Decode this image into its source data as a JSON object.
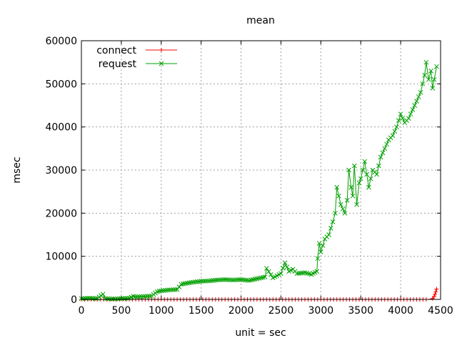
{
  "chart_data": {
    "type": "line",
    "title": "mean",
    "xlabel": "unit = sec",
    "ylabel": "msec",
    "xlim": [
      0,
      4500
    ],
    "ylim": [
      0,
      60000
    ],
    "xticks": [
      0,
      500,
      1000,
      1500,
      2000,
      2500,
      3000,
      3500,
      4000,
      4500
    ],
    "yticks": [
      0,
      10000,
      20000,
      30000,
      40000,
      50000,
      60000
    ],
    "grid": true,
    "legend_position": "top-left",
    "series": [
      {
        "name": "connect",
        "color": "#ff0000",
        "marker": "plus",
        "points": [
          [
            0,
            0
          ],
          [
            4350,
            0
          ],
          [
            4400,
            200
          ],
          [
            4420,
            700
          ],
          [
            4430,
            1200
          ],
          [
            4440,
            1800
          ],
          [
            4450,
            2400
          ]
        ]
      },
      {
        "name": "request",
        "color": "#00a000",
        "marker": "x",
        "points": [
          [
            0,
            200
          ],
          [
            100,
            300
          ],
          [
            200,
            200
          ],
          [
            270,
            1200
          ],
          [
            300,
            200
          ],
          [
            400,
            100
          ],
          [
            500,
            200
          ],
          [
            600,
            300
          ],
          [
            650,
            700
          ],
          [
            700,
            600
          ],
          [
            800,
            700
          ],
          [
            880,
            800
          ],
          [
            950,
            1800
          ],
          [
            1000,
            2000
          ],
          [
            1100,
            2200
          ],
          [
            1200,
            2300
          ],
          [
            1250,
            3500
          ],
          [
            1300,
            3700
          ],
          [
            1400,
            4000
          ],
          [
            1500,
            4200
          ],
          [
            1600,
            4300
          ],
          [
            1700,
            4500
          ],
          [
            1800,
            4600
          ],
          [
            1900,
            4500
          ],
          [
            2000,
            4600
          ],
          [
            2100,
            4400
          ],
          [
            2200,
            4800
          ],
          [
            2300,
            5200
          ],
          [
            2320,
            7200
          ],
          [
            2400,
            5000
          ],
          [
            2500,
            6000
          ],
          [
            2550,
            8500
          ],
          [
            2600,
            6500
          ],
          [
            2650,
            7000
          ],
          [
            2700,
            6000
          ],
          [
            2800,
            6200
          ],
          [
            2880,
            5800
          ],
          [
            2950,
            6500
          ],
          [
            2960,
            9500
          ],
          [
            2980,
            13000
          ],
          [
            3000,
            11000
          ],
          [
            3050,
            14000
          ],
          [
            3100,
            15000
          ],
          [
            3150,
            18000
          ],
          [
            3180,
            20000
          ],
          [
            3200,
            26000
          ],
          [
            3250,
            22000
          ],
          [
            3300,
            20000
          ],
          [
            3330,
            23000
          ],
          [
            3350,
            30000
          ],
          [
            3380,
            26000
          ],
          [
            3400,
            24000
          ],
          [
            3420,
            31000
          ],
          [
            3450,
            22000
          ],
          [
            3480,
            27000
          ],
          [
            3500,
            28000
          ],
          [
            3550,
            32000
          ],
          [
            3600,
            26000
          ],
          [
            3650,
            30000
          ],
          [
            3700,
            29000
          ],
          [
            3750,
            33000
          ],
          [
            3800,
            35000
          ],
          [
            3850,
            37000
          ],
          [
            3900,
            38000
          ],
          [
            3950,
            40000
          ],
          [
            4000,
            43000
          ],
          [
            4050,
            41000
          ],
          [
            4100,
            42000
          ],
          [
            4150,
            44000
          ],
          [
            4200,
            46000
          ],
          [
            4250,
            48000
          ],
          [
            4300,
            52000
          ],
          [
            4320,
            55000
          ],
          [
            4350,
            51000
          ],
          [
            4380,
            53000
          ],
          [
            4400,
            49000
          ],
          [
            4420,
            51000
          ],
          [
            4450,
            54000
          ]
        ]
      }
    ]
  }
}
